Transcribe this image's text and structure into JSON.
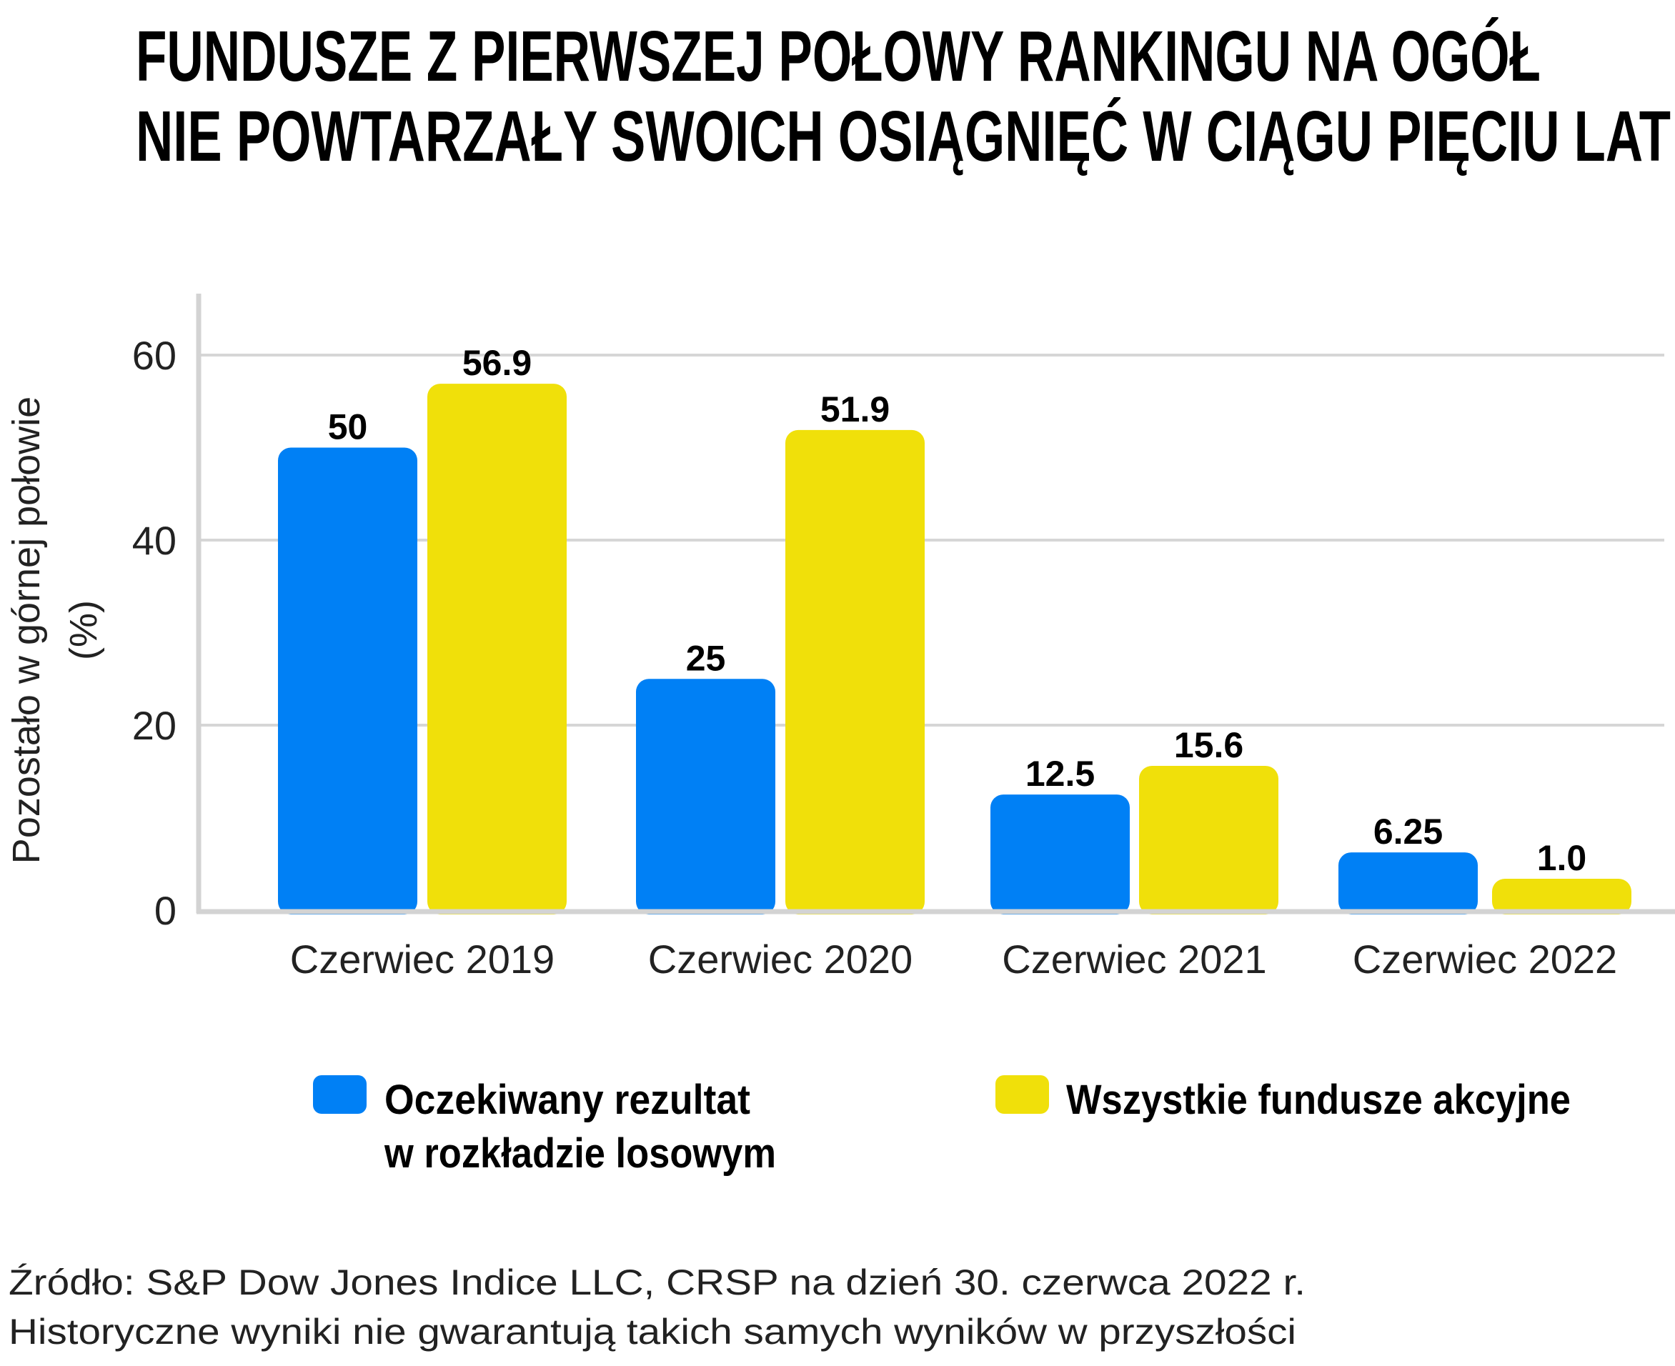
{
  "colors": {
    "expected": "#0080F5",
    "all_funds": "#F0E00A",
    "grid": "#D6D6D6",
    "axis": "#D3D3D3"
  },
  "chart_data": {
    "type": "bar",
    "title": [
      "FUNDUSZE Z PIERWSZEJ POŁOWY RANKINGU NA OGÓŁ",
      "NIE POWTARZAŁY SWOICH OSIĄGNIĘĆ W CIĄGU PIĘCIU LAT"
    ],
    "ylabel": [
      "Pozostało w górnej połowie",
      "(%)"
    ],
    "xlabel": "",
    "categories": [
      "Czerwiec 2019",
      "Czerwiec 2020",
      "Czerwiec 2021",
      "Czerwiec 2022"
    ],
    "series": [
      {
        "name": "Oczekiwany rezultat w rozkładzie losowym",
        "legend_lines": [
          "Oczekiwany rezultat",
          "w rozkładzie losowym"
        ],
        "values": [
          50,
          25,
          12.5,
          6.25
        ],
        "labels": [
          "50",
          "25",
          "12.5",
          "6.25"
        ]
      },
      {
        "name": "Wszystkie fundusze akcyjne",
        "legend_lines": [
          "Wszystkie fundusze akcyjne"
        ],
        "values": [
          56.9,
          51.9,
          15.6,
          1.0
        ],
        "labels": [
          "56.9",
          "51.9",
          "15.6",
          "1.0"
        ]
      }
    ],
    "yticks": [
      "0",
      "20",
      "40",
      "60"
    ],
    "ylim": [
      0,
      66
    ],
    "grid": true,
    "legend": "bottom"
  },
  "source": [
    "Źródło: S&P Dow Jones Indice LLC, CRSP na dzień 30. czerwca 2022 r.",
    "Historyczne wyniki nie gwarantują takich samych wyników w przyszłości"
  ]
}
